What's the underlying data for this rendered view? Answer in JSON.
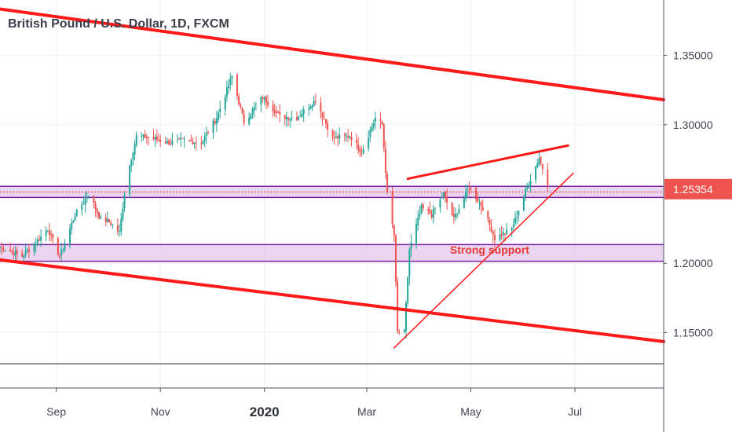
{
  "chart_title": "British Pound / U.S. Dollar, 1D, FXCM",
  "colors": {
    "up": "#26a69a",
    "down": "#ef5350",
    "trendline": "#ff1a1a",
    "zone_fill": "#e4c7ec",
    "zone_border": "#7b1fa2",
    "price_tag": "#ef5350",
    "grid": "#eef0f3"
  },
  "chart_data": {
    "type": "candlestick",
    "title": "British Pound / U.S. Dollar, 1D, FXCM",
    "ylim": [
      1.11,
      1.39
    ],
    "x_range": [
      "2019-07-30",
      "2020-08-22"
    ],
    "y_ticks": [
      "1.35000",
      "1.30000",
      "1.20000",
      "1.15000"
    ],
    "y_tick_values": [
      1.35,
      1.3,
      1.2,
      1.15
    ],
    "x_ticks": [
      {
        "label": "Sep",
        "date": "2019-09-01",
        "bold": false
      },
      {
        "label": "Nov",
        "date": "2019-11-01",
        "bold": false
      },
      {
        "label": "2020",
        "date": "2020-01-01",
        "bold": true
      },
      {
        "label": "Mar",
        "date": "2020-03-01",
        "bold": false
      },
      {
        "label": "May",
        "date": "2020-05-01",
        "bold": false
      },
      {
        "label": "Jul",
        "date": "2020-07-01",
        "bold": false
      }
    ],
    "last_price": "1.25354",
    "last_price_value": 1.25354,
    "price_path": [
      [
        "2019-07-30",
        1.212
      ],
      [
        "2019-08-12",
        1.205
      ],
      [
        "2019-08-20",
        1.215
      ],
      [
        "2019-08-27",
        1.225
      ],
      [
        "2019-09-03",
        1.205
      ],
      [
        "2019-09-12",
        1.235
      ],
      [
        "2019-09-20",
        1.25
      ],
      [
        "2019-09-27",
        1.232
      ],
      [
        "2019-10-02",
        1.23
      ],
      [
        "2019-10-08",
        1.222
      ],
      [
        "2019-10-12",
        1.26
      ],
      [
        "2019-10-18",
        1.292
      ],
      [
        "2019-10-28",
        1.29
      ],
      [
        "2019-11-06",
        1.287
      ],
      [
        "2019-11-15",
        1.289
      ],
      [
        "2019-11-25",
        1.287
      ],
      [
        "2019-12-04",
        1.305
      ],
      [
        "2019-12-13",
        1.335
      ],
      [
        "2019-12-20",
        1.302
      ],
      [
        "2019-12-31",
        1.32
      ],
      [
        "2020-01-10",
        1.306
      ],
      [
        "2020-01-20",
        1.305
      ],
      [
        "2020-01-31",
        1.318
      ],
      [
        "2020-02-10",
        1.29
      ],
      [
        "2020-02-20",
        1.292
      ],
      [
        "2020-02-27",
        1.28
      ],
      [
        "2020-03-06",
        1.305
      ],
      [
        "2020-03-10",
        1.3
      ],
      [
        "2020-03-13",
        1.25
      ],
      [
        "2020-03-17",
        1.22
      ],
      [
        "2020-03-19",
        1.15
      ],
      [
        "2020-03-23",
        1.15
      ],
      [
        "2020-03-26",
        1.21
      ],
      [
        "2020-04-02",
        1.24
      ],
      [
        "2020-04-08",
        1.235
      ],
      [
        "2020-04-15",
        1.25
      ],
      [
        "2020-04-21",
        1.232
      ],
      [
        "2020-04-30",
        1.255
      ],
      [
        "2020-05-08",
        1.24
      ],
      [
        "2020-05-15",
        1.218
      ],
      [
        "2020-05-25",
        1.225
      ],
      [
        "2020-06-03",
        1.255
      ],
      [
        "2020-06-10",
        1.276
      ],
      [
        "2020-06-15",
        1.258
      ]
    ],
    "trendlines": [
      {
        "name": "channel-upper",
        "start": [
          "2019-07-30",
          1.3835
        ],
        "end": [
          "2020-08-22",
          1.318
        ],
        "width": 4
      },
      {
        "name": "channel-lower",
        "start": [
          "2019-07-30",
          1.2025
        ],
        "end": [
          "2020-08-22",
          1.1435
        ],
        "width": 4
      },
      {
        "name": "wedge-upper",
        "start": [
          "2020-03-25",
          1.261
        ],
        "end": [
          "2020-06-27",
          1.285
        ],
        "width": 3
      },
      {
        "name": "wedge-support",
        "start": [
          "2020-03-17",
          1.139
        ],
        "end": [
          "2020-06-30",
          1.265
        ],
        "width": 1.5
      }
    ],
    "zones": [
      {
        "name": "resistance-band",
        "start": "2019-07-30",
        "end": "2020-08-22",
        "ymin": 1.2475,
        "ymax": 1.2555,
        "dashed_mid": true
      },
      {
        "name": "support-band",
        "start": "2019-07-30",
        "end": "2020-08-22",
        "ymin": 1.2015,
        "ymax": 1.2135,
        "label": "Strong support"
      }
    ],
    "horizontal_line": 1.1275,
    "annotation": {
      "text": "Strong support",
      "date": "2020-05-12",
      "y": 1.207
    }
  }
}
